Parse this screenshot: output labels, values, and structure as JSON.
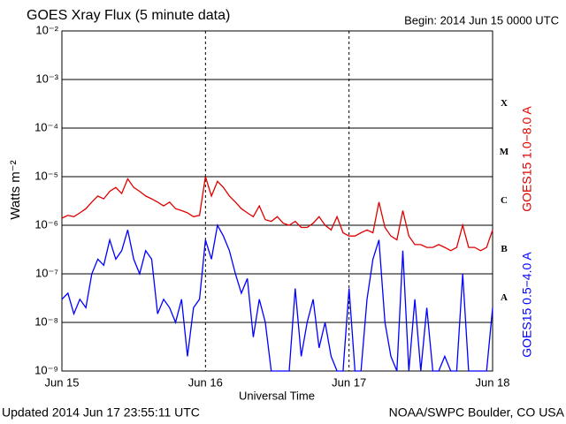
{
  "chart_data": {
    "type": "line",
    "title": "GOES Xray Flux (5 minute data)",
    "subtitle": "Begin:  2014 Jun 15 0000 UTC",
    "ylabel": "Watts m⁻²",
    "xlabel": "Universal Time",
    "footer_left": "Updated 2014 Jun 17 23:55:11 UTC",
    "footer_right": "NOAA/SWPC Boulder, CO USA",
    "class_labels": [
      "X",
      "M",
      "C",
      "B",
      "A"
    ],
    "log_y": true,
    "grid": true,
    "xlim": [
      0,
      72
    ],
    "xticks": [
      {
        "value": 0,
        "label": "Jun 15"
      },
      {
        "value": 24,
        "label": "Jun 16"
      },
      {
        "value": 48,
        "label": "Jun 17"
      },
      {
        "value": 72,
        "label": "Jun 18"
      }
    ],
    "ylim": [
      1e-09,
      0.01
    ],
    "yticks": [
      {
        "value": 1e-09,
        "label": "10⁻⁹"
      },
      {
        "value": 1e-08,
        "label": "10⁻⁸"
      },
      {
        "value": 1e-07,
        "label": "10⁻⁷"
      },
      {
        "value": 1e-06,
        "label": "10⁻⁶"
      },
      {
        "value": 1e-05,
        "label": "10⁻⁵"
      },
      {
        "value": 0.0001,
        "label": "10⁻⁴"
      },
      {
        "value": 0.001,
        "label": "10⁻³"
      },
      {
        "value": 0.01,
        "label": "10⁻²"
      }
    ],
    "x": [
      0,
      1,
      2,
      3,
      4,
      5,
      6,
      7,
      8,
      9,
      10,
      11,
      12,
      13,
      14,
      15,
      16,
      17,
      18,
      19,
      20,
      21,
      22,
      23,
      24,
      25,
      26,
      27,
      28,
      29,
      30,
      31,
      32,
      33,
      34,
      35,
      36,
      37,
      38,
      39,
      40,
      41,
      42,
      43,
      44,
      45,
      46,
      47,
      48,
      49,
      50,
      51,
      52,
      53,
      54,
      55,
      56,
      57,
      58,
      59,
      60,
      61,
      62,
      63,
      64,
      65,
      66,
      67,
      68,
      69,
      70,
      71,
      72
    ],
    "series": [
      {
        "name": "GOES15 1.0−8.0 A",
        "color": "#e00000",
        "values": [
          1.4e-06,
          1.6e-06,
          1.5e-06,
          1.8e-06,
          2.2e-06,
          3e-06,
          4e-06,
          3.5e-06,
          5e-06,
          6e-06,
          4.5e-06,
          9e-06,
          6e-06,
          5e-06,
          4e-06,
          3.5e-06,
          3e-06,
          2.5e-06,
          3e-06,
          2.2e-06,
          2e-06,
          1.8e-06,
          1.5e-06,
          1.6e-06,
          1e-05,
          4e-06,
          8e-06,
          6e-06,
          4e-06,
          3e-06,
          2.2e-06,
          1.8e-06,
          1.5e-06,
          2.5e-06,
          1.3e-06,
          1.2e-06,
          1.5e-06,
          1.1e-06,
          1e-06,
          1.2e-06,
          9e-07,
          9e-07,
          1.1e-06,
          1.5e-06,
          1e-06,
          8e-07,
          1.5e-06,
          7e-07,
          6e-07,
          6e-07,
          7e-07,
          8e-07,
          7e-07,
          3e-06,
          9e-07,
          6e-07,
          5e-07,
          2e-06,
          6e-07,
          4e-07,
          4e-07,
          3.5e-07,
          3.5e-07,
          4e-07,
          3.5e-07,
          3e-07,
          3.5e-07,
          1e-06,
          3.5e-07,
          3.5e-07,
          3e-07,
          3.5e-07,
          8e-07
        ]
      },
      {
        "name": "GOES15 0.5−4.0 A",
        "color": "#0000ff",
        "values": [
          3e-08,
          4e-08,
          1.5e-08,
          3e-08,
          2e-08,
          1e-07,
          2e-07,
          1.5e-07,
          5e-07,
          2e-07,
          3e-07,
          8e-07,
          2e-07,
          1e-07,
          3e-07,
          2e-07,
          1.5e-08,
          3e-08,
          2e-08,
          1e-08,
          3e-08,
          2e-09,
          2e-08,
          3e-08,
          5e-07,
          2e-07,
          1e-06,
          6e-07,
          3e-07,
          1e-07,
          4e-08,
          8e-08,
          5e-09,
          3e-08,
          1e-08,
          1e-09,
          1e-09,
          1e-09,
          1e-09,
          5e-08,
          2e-09,
          1e-08,
          3e-08,
          3e-09,
          1e-08,
          2e-09,
          1e-09,
          1e-09,
          5e-08,
          1e-09,
          1e-09,
          3e-08,
          2e-07,
          5e-07,
          1e-08,
          2e-09,
          1e-09,
          3e-07,
          1e-09,
          3e-08,
          1e-09,
          2e-08,
          1e-09,
          1e-09,
          2e-09,
          1e-09,
          1e-09,
          1e-07,
          1e-09,
          1e-09,
          1e-09,
          1e-09,
          2e-08
        ]
      }
    ]
  }
}
